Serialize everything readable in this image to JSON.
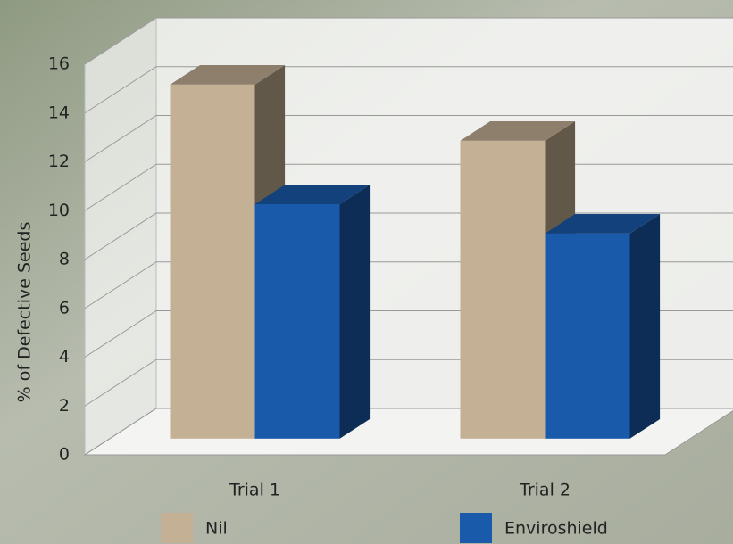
{
  "chart_data": {
    "type": "bar3d",
    "y_label": "% of Defective Seeds",
    "categories": [
      "Trial 1",
      "Trial 2"
    ],
    "series": [
      {
        "name": "Nil",
        "color": "#c4b094",
        "values": [
          14.5,
          12.2
        ]
      },
      {
        "name": "Enviroshield",
        "color": "#1a5aab",
        "values": [
          9.6,
          8.4
        ]
      }
    ],
    "ylim": [
      0,
      16
    ],
    "yticks": [
      0,
      2,
      4,
      6,
      8,
      10,
      12,
      14,
      16
    ],
    "grid": true
  }
}
